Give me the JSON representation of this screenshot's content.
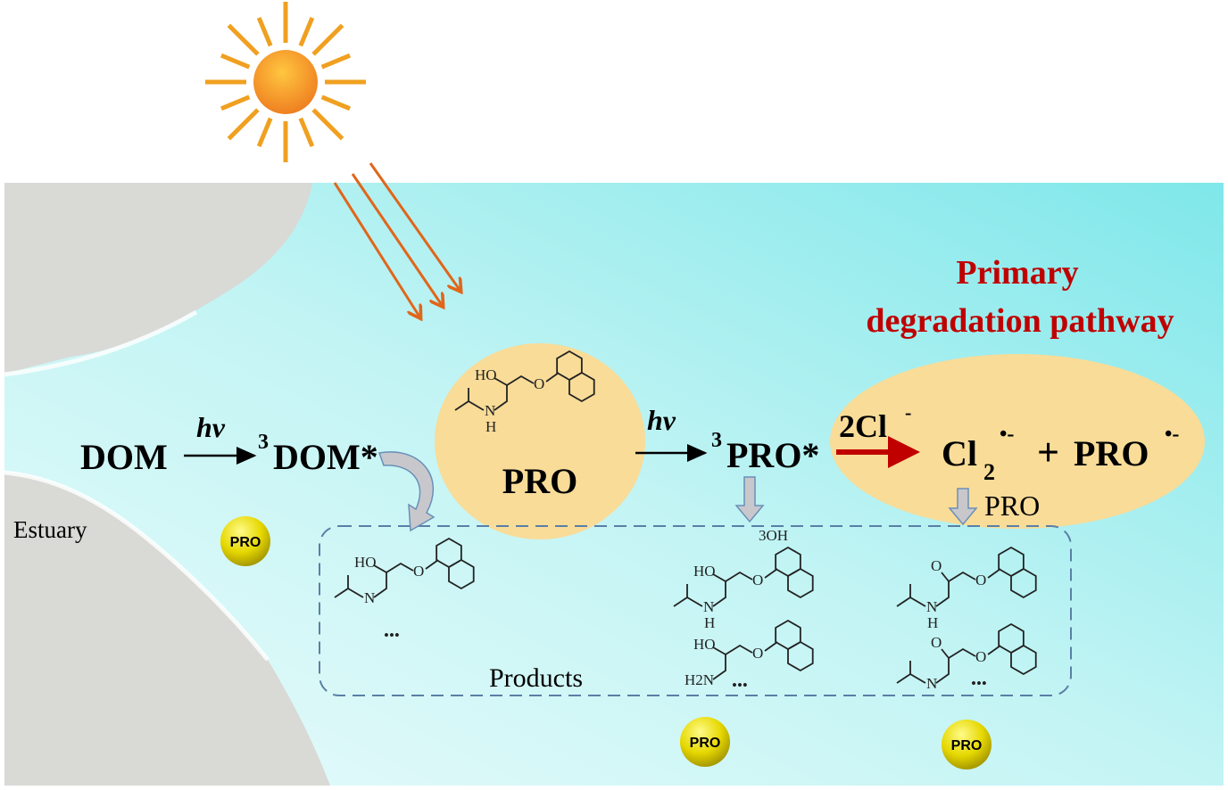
{
  "colors": {
    "water": "#bff3f3",
    "water_edge": "#7fe6ea",
    "land": "#d9d9d6",
    "ellipse": "#f8dc98",
    "red": "#c00000",
    "sun": "#f39c1f",
    "dashed_box": "#5a7fa6"
  },
  "labels": {
    "dom": "DOM",
    "hv1": "hv",
    "dom_star": "DOM*",
    "dom_sup": "3",
    "pro_center": "PRO",
    "hv2": "hv",
    "pro_star": "PRO*",
    "pro_sup": "3",
    "cl_reactant": "2Cl",
    "cl_reactant_sup": "-",
    "cl2": "Cl",
    "cl2_sub": "2",
    "cl2_sup": "•-",
    "plus": "+",
    "pro_rad": "PRO",
    "pro_rad_sup": "•-",
    "pro_reagent": "PRO",
    "primary_line1": "Primary",
    "primary_line2": "degradation pathway",
    "estuary": "Estuary",
    "products": "Products",
    "ball1": "PRO",
    "ball2": "PRO",
    "ball3": "PRO"
  },
  "molecules": {
    "ho": "HO",
    "o": "O",
    "n": "N",
    "h": "H",
    "oh3": "3OH",
    "h2n": "H2N",
    "dots": "•••"
  }
}
